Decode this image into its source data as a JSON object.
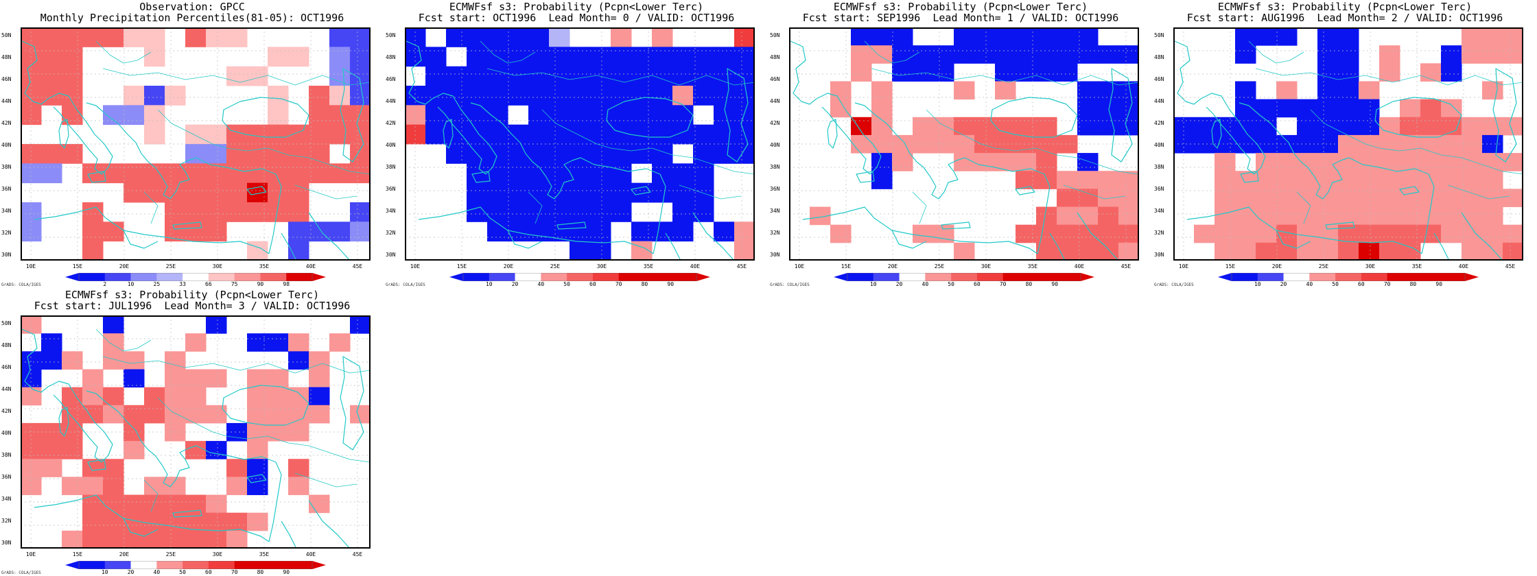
{
  "colors": {
    "dblue": "#0a14f0",
    "mblue": "#4646f5",
    "lblue": "#8c8cf8",
    "vlblue": "#b4b4f8",
    "white": "#ffffff",
    "vlred": "#ffc4c4",
    "lred": "#fa9696",
    "mred": "#f56464",
    "red": "#f03c3c",
    "dred": "#dc0000",
    "coast": "#22c8c8",
    "grid": "#bdbdbd"
  },
  "lat_labels": [
    "50N",
    "48N",
    "46N",
    "44N",
    "42N",
    "40N",
    "38N",
    "36N",
    "34N",
    "32N",
    "30N"
  ],
  "lon_labels": [
    "10E",
    "15E",
    "20E",
    "25E",
    "30E",
    "35E",
    "40E",
    "45E"
  ],
  "credit": "GrADS: COLA/IGES",
  "colorbars": {
    "obs": {
      "labels": [
        "2",
        "10",
        "25",
        "33",
        "66",
        "75",
        "90",
        "98"
      ],
      "colors": [
        "dblue",
        "mblue",
        "lblue",
        "vlblue",
        "white",
        "vlred",
        "lred",
        "mred",
        "dred"
      ]
    },
    "prob": {
      "labels": [
        "10",
        "20",
        "40",
        "50",
        "60",
        "70",
        "80",
        "90"
      ],
      "colors": [
        "dblue",
        "mblue",
        "white",
        "lred",
        "mred",
        "red",
        "dred",
        "dred",
        "dred"
      ]
    }
  },
  "panels": [
    {
      "title1": "Observation: GPCC",
      "title2": "Monthly Precipitation Percentiles(81-05): OCT1996",
      "cbar": "obs",
      "grid": [
        "mmmmmww.mww....bb",
        "mmm...w.....ww.lb",
        "mmm.......ww...lb",
        "mmm..wbw....w.mwb",
        "m.m.llw.....w.mmm",
        "......w.wwmmmmmmm",
        "mmm.....llmmmmm.m",
        "ll.mmmmmmmmmmmmmm",
        ".....mmmmmmdmm...",
        "l..m...mmmmmmm..b",
        "l..mm..mmm...bbbl",
        "...m.......w.b..."
      ]
    },
    {
      "title1": "ECMWFsf s3: Probability (Pcpn<Lower Terc)",
      "title2": "Fcst start: OCT1996  Lead Month= 0 / VALID: OCT1996",
      "cbar": "prob",
      "grid": [
        "b.bbbbbw..s.s...r",
        "bb.bbbbbbbbbbbbbb",
        ".bbbbbbbbbbbbbbbb",
        "bbbbbbbbbbbbbsbbb",
        "sbbbb.bbbbbbbb.bb",
        "rbbbbbbbbbbbbbbbb",
        "..bbbbbbbbbbb.bbb",
        "...bbbbbbbb.bbb..",
        "...bbbbbbbbbbbb..",
        "...bbbbbbbb..bb..",
        "....bbbbbb.bbb.bs",
        "........bb.s....s"
      ]
    },
    {
      "title1": "ECMWFsf s3: Probability (Pcpn<Lower Terc)",
      "title2": "Fcst start: SEP1996  Lead Month= 1 / VALID: OCT1996",
      "cbar": "prob",
      "grid": [
        "...bbb..bbbbbbb..",
        "...ssbbbbbbbbbbbb",
        "...s.bbb..bbbb...",
        "..s.s...s.s...bbb",
        "..s.s.........bbb",
        "...ds.ssmmmmm.bbb",
        "...ssssssmmmmm...",
        "....bs..ssssm.b..",
        "....b......mmssss",
        ".............mmss",
        ".s..........mssms",
        "..s...ss...mmmmmm",
        "........s...mmmms"
      ]
    },
    {
      "title1": "ECMWFsf s3: Probability (Pcpn<Lower Terc)",
      "title2": "Fcst start: AUG1996  Lead Month= 2 / VALID: OCT1996",
      "cbar": "prob",
      "grid": [
        "...bbb.bb.....sss",
        "...b...bb.s..bsss",
        ".......bb.s.sb...",
        "...b.s.bbs.....s.",
        "...bbbbbbb.sms...",
        "bbbbb.bbbbsmmmsss",
        "bbbbbbbbsssssssb.",
        "..s.sssssssssssss",
        "..ssssssssssssss.",
        "..sssssssssssssss",
        "..ssssssssssssss.",
        ".ssssmssmmmmmssss",
        "..ssmmssmdmm..ssm"
      ]
    },
    {
      "title1": "ECMWFsf s3: Probability (Pcpn<Lower Terc)",
      "title2": "Fcst start: JUL1996  Lead Month= 3 / VALID: OCT1996",
      "cbar": "prob",
      "grid": [
        "s...b....b......b",
        ".b..s...s..bbs.s.",
        "bbs.ss.s.....bs..",
        "b..s.b.sss.ss.s..",
        "s.msm.mss..sssb..",
        "..mmsmmsss.ssss.s",
        "mmm..m.s..bsss...",
        "mmm..s..mb.s.....",
        "ss.mm.....mb.m...",
        "s.ssm.ss..sb.s...",
        "...mmmmmms....s..",
        "...mmmmmmmms.....",
        "..smmmmmmms......"
      ]
    }
  ]
}
